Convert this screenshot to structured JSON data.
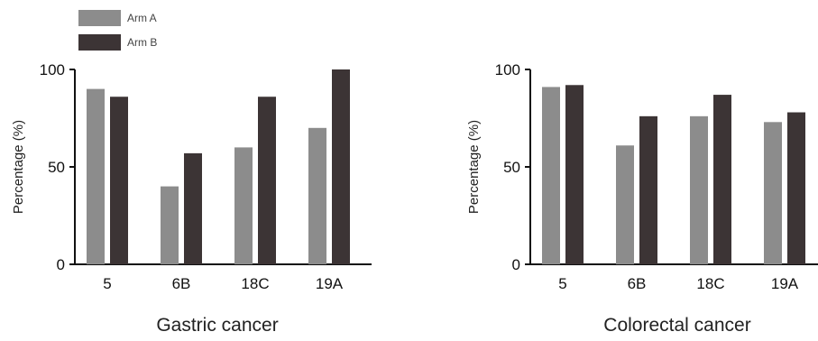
{
  "legend": [
    {
      "label": "Arm A",
      "color": "#8c8c8c"
    },
    {
      "label": "Arm B",
      "color": "#3c3435"
    }
  ],
  "chart_data": [
    {
      "type": "bar",
      "title": "Gastric cancer",
      "ylabel": "Percentage (%)",
      "xlabel": "",
      "ylim": [
        0,
        100
      ],
      "yticks": [
        0,
        50,
        100
      ],
      "categories": [
        "5",
        "6B",
        "18C",
        "19A"
      ],
      "series": [
        {
          "name": "Arm A",
          "values": [
            90,
            40,
            60,
            70
          ]
        },
        {
          "name": "Arm B",
          "values": [
            86,
            57,
            86,
            100
          ]
        }
      ],
      "legend_position": "top-left",
      "grid": false
    },
    {
      "type": "bar",
      "title": "Colorectal cancer",
      "ylabel": "Percentage (%)",
      "xlabel": "",
      "ylim": [
        0,
        100
      ],
      "yticks": [
        0,
        50,
        100
      ],
      "categories": [
        "5",
        "6B",
        "18C",
        "19A"
      ],
      "series": [
        {
          "name": "Arm A",
          "values": [
            91,
            61,
            76,
            73
          ]
        },
        {
          "name": "Arm B",
          "values": [
            92,
            76,
            87,
            78
          ]
        }
      ],
      "legend_position": "none",
      "grid": false
    }
  ]
}
